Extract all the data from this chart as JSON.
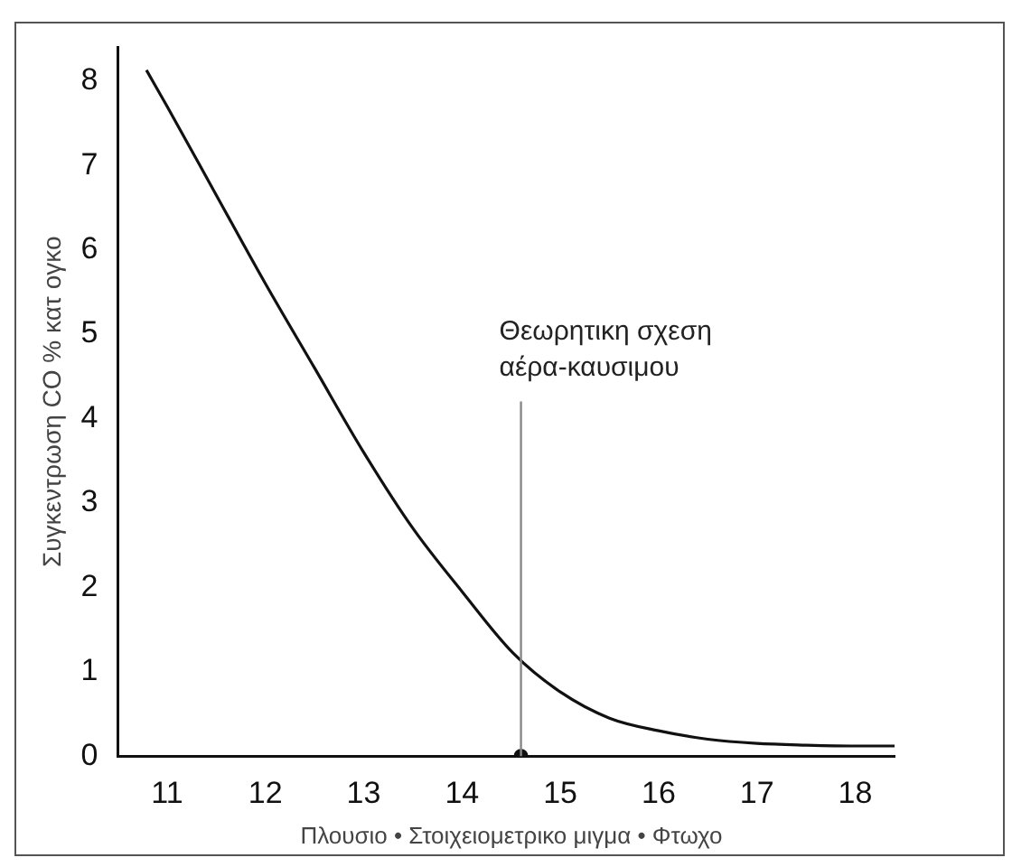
{
  "chart_data": {
    "type": "line",
    "xlabel": "Πλουσιο  •  Στοιχειομετρικο μιγμα  •  Φτωχο",
    "ylabel": "Συγκεντρωση CO % κατ ογκο",
    "series": [
      {
        "color": "#111111",
        "marker": "none",
        "x": [
          10.79,
          11,
          11.5,
          12,
          12.5,
          13,
          13.5,
          14,
          14.52,
          15,
          15.5,
          16,
          16.5,
          17,
          17.5,
          18,
          18.4
        ],
        "values": [
          8.13,
          7.7,
          6.65,
          5.6,
          4.6,
          3.6,
          2.7,
          1.95,
          1.22,
          0.76,
          0.45,
          0.3,
          0.2,
          0.15,
          0.13,
          0.12,
          0.12
        ]
      },
      {
        "type": "scatter",
        "color": "#111111",
        "marker": "circle",
        "x": [
          14.6
        ],
        "values": [
          0
        ]
      }
    ],
    "xlim": [
      10.5,
      18.4
    ],
    "xticks": [
      11,
      12,
      13,
      14,
      15,
      16,
      17,
      18
    ],
    "ylim": [
      0,
      8.4
    ],
    "yticks": [
      0,
      1,
      2,
      3,
      4,
      5,
      6,
      7,
      8
    ],
    "ref_lines": [
      {
        "axis": "x",
        "value": 14.6,
        "label": "Θεωρητικη σχεση αέρα-καυσιμου",
        "color": "#888888"
      }
    ],
    "grid": false,
    "legend": false,
    "line_style": "solid"
  }
}
